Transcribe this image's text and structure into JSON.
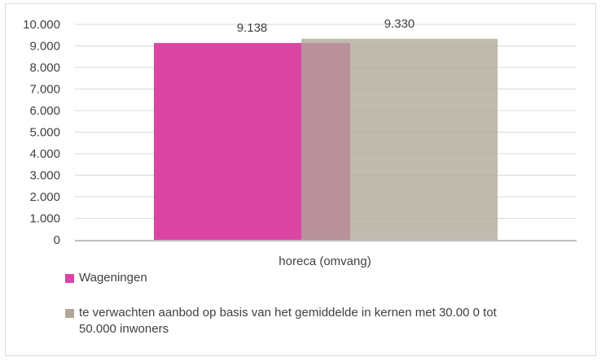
{
  "chart_data": {
    "type": "bar",
    "categories": [
      "horeca (omvang)"
    ],
    "series": [
      {
        "name": "Wageningen",
        "values": [
          9138
        ],
        "label": "9.138",
        "color": "#db46a5"
      },
      {
        "name": "te verwachten aanbod op basis van het gemiddelde in kernen met 30.00 0 tot 50.000 inwoners",
        "name_lines": [
          "te verwachten aanbod op basis van het gemiddelde in kernen met 30.00 0 tot",
          "50.000 inwoners"
        ],
        "values": [
          9330
        ],
        "label": "9.330",
        "color": "#b0a799"
      },
      {
        "_": ""
      }
    ],
    "ylim": [
      0,
      10000
    ],
    "yticks": [
      0,
      1000,
      2000,
      3000,
      4000,
      5000,
      6000,
      7000,
      8000,
      9000,
      10000
    ],
    "ytick_labels": [
      "0",
      "1.000",
      "2.000",
      "3.000",
      "4.000",
      "5.000",
      "6.000",
      "7.000",
      "8.000",
      "9.000",
      "10.000"
    ],
    "grid": true,
    "legend_position": "bottom-left",
    "overlap": true
  }
}
